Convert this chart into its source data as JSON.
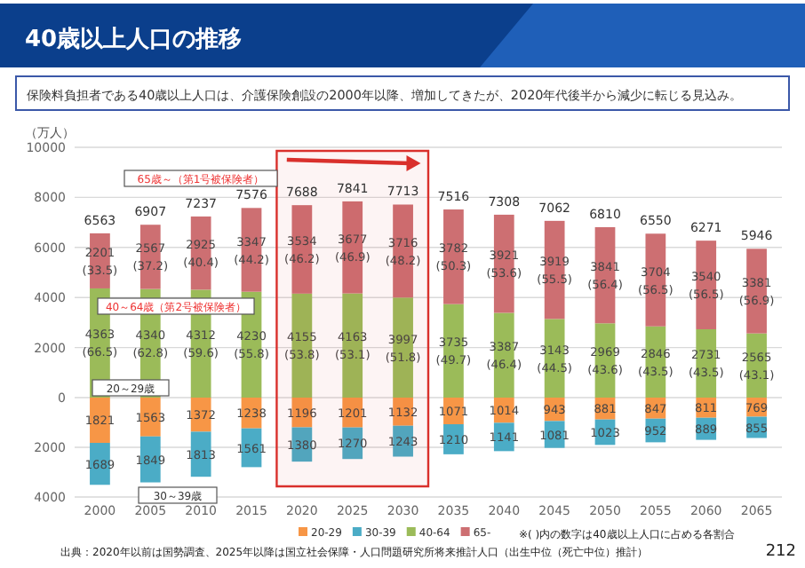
{
  "chart_data": [
    {
      "type": "bar",
      "stacked": true,
      "title": "40歳以上人口の推移",
      "subtitle": "保険料負担者である40歳以上人口は、介護保険創設の2000年以降、増加してきたが、2020年代後半から減少に転じる見込み。",
      "ylabel": "（万人）",
      "categories": [
        "2000",
        "2005",
        "2010",
        "2015",
        "2020",
        "2025",
        "2030",
        "2035",
        "2040",
        "2045",
        "2050",
        "2055",
        "2060",
        "2065"
      ],
      "series": [
        {
          "name": "40-64",
          "color": "#9bbb59",
          "values": [
            4363,
            4340,
            4312,
            4230,
            4155,
            4163,
            3997,
            3735,
            3387,
            3143,
            2969,
            2846,
            2731,
            2565
          ],
          "value_labels": [
            "4363 (66.5)",
            "4340 (62.8)",
            "4312 (59.6)",
            "4230 (55.8)",
            "4155 (53.8)",
            "4163 (53.1)",
            "3997 (51.8)",
            "3735 (49.7)",
            "3387 (46.4)",
            "3143 (44.5)",
            "2969 (43.6)",
            "2846 (43.5)",
            "2731 (43.5)",
            "2565 (43.1)"
          ]
        },
        {
          "name": "65-",
          "color": "#cd6f72",
          "values": [
            2201,
            2567,
            2925,
            3347,
            3534,
            3677,
            3716,
            3782,
            3921,
            3919,
            3841,
            3704,
            3540,
            3381
          ],
          "value_labels": [
            "2201 (33.5)",
            "2567 (37.2)",
            "2925 (40.4)",
            "3347 (44.2)",
            "3534 (46.2)",
            "3677 (46.9)",
            "3716 (48.2)",
            "3782 (50.3)",
            "3921 (53.6)",
            "3919 (55.5)",
            "3841 (56.4)",
            "3704 (56.5)",
            "3540 (56.5)",
            "3381 (56.9)"
          ]
        }
      ],
      "ylim": [
        0,
        10000
      ],
      "yticks": [
        0,
        2000,
        4000,
        6000,
        8000,
        10000
      ],
      "tick_labels": "y",
      "grid": "y",
      "legend": "bottom",
      "bands": [
        {
          "axis": "x",
          "from": "2020",
          "to": "2030",
          "color": "#d9302c"
        }
      ],
      "annotations": [
        {
          "text": "6563",
          "x": "2000",
          "y": 6563
        },
        {
          "text": "6907",
          "x": "2005",
          "y": 6907
        },
        {
          "text": "7237",
          "x": "2010",
          "y": 7237
        },
        {
          "text": "7576",
          "x": "2015",
          "y": 7576
        },
        {
          "text": "7688",
          "x": "2020",
          "y": 7688
        },
        {
          "text": "7841",
          "x": "2025",
          "y": 7841
        },
        {
          "text": "7713",
          "x": "2030",
          "y": 7713
        },
        {
          "text": "7516",
          "x": "2035",
          "y": 7516
        },
        {
          "text": "7308",
          "x": "2040",
          "y": 7308
        },
        {
          "text": "7062",
          "x": "2045",
          "y": 7062
        },
        {
          "text": "6810",
          "x": "2050",
          "y": 6810
        },
        {
          "text": "6550",
          "x": "2055",
          "y": 6550
        },
        {
          "text": "6271",
          "x": "2060",
          "y": 6271
        },
        {
          "text": "5946",
          "x": "2065",
          "y": 5946
        },
        "65歳～（第1号被保険者）",
        "40～64歳（第2号被保険者）"
      ]
    },
    {
      "type": "bar",
      "stacked": true,
      "categories": [
        "2000",
        "2005",
        "2010",
        "2015",
        "2020",
        "2025",
        "2030",
        "2035",
        "2040",
        "2045",
        "2050",
        "2055",
        "2060",
        "2065"
      ],
      "series": [
        {
          "name": "20-29",
          "color": "#f79646",
          "values": [
            1821,
            1563,
            1372,
            1238,
            1196,
            1201,
            1132,
            1071,
            1014,
            943,
            881,
            847,
            811,
            769
          ]
        },
        {
          "name": "30-39",
          "color": "#4bacc6",
          "values": [
            1689,
            1849,
            1813,
            1561,
            1380,
            1270,
            1243,
            1210,
            1141,
            1081,
            1023,
            952,
            889,
            855
          ]
        }
      ],
      "data_labels": true,
      "ylim": [
        4000,
        0
      ],
      "yticks": [
        2000,
        4000
      ],
      "grid": "y",
      "legend": "bottom",
      "bands": [
        {
          "axis": "x",
          "from": "2020",
          "to": "2030",
          "color": "#d9302c"
        }
      ],
      "annotations": [
        "20～29歳",
        "30～39歳",
        "※( )内の数字は40歳以上人口に占める各割合",
        "出典：2020年以前は国勢調査、2025年以降は国立社会保障・人口問題研究所将来推計人口（出生中位（死亡中位）推計）",
        "212"
      ]
    }
  ]
}
